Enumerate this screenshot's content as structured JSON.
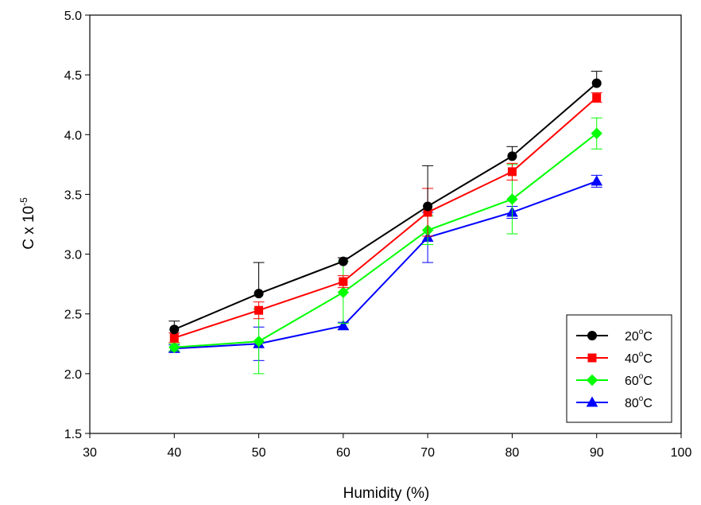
{
  "chart_data": {
    "type": "line",
    "x": [
      40,
      50,
      60,
      70,
      80,
      90
    ],
    "xlabel": "Humidity (%)",
    "ylabel_main": "C x 10",
    "ylabel_sup": "-5",
    "xlim": [
      30,
      100
    ],
    "ylim": [
      1.5,
      5.0
    ],
    "xticks": [
      "30",
      "40",
      "50",
      "60",
      "70",
      "80",
      "90",
      "100"
    ],
    "yticks": [
      "1.5",
      "2.0",
      "2.5",
      "3.0",
      "3.5",
      "4.0",
      "4.5",
      "5.0"
    ],
    "grid": false,
    "legend_position": "bottom-right",
    "series": [
      {
        "name_main": "20",
        "name_sup": "o",
        "name_suffix": "C",
        "color": "#000000",
        "marker": "circle",
        "values": [
          2.37,
          2.67,
          2.94,
          3.4,
          3.82,
          4.43
        ],
        "error_upper": [
          2.44,
          2.93,
          2.97,
          3.74,
          3.9,
          4.53
        ],
        "error_lower": [
          2.3,
          2.41,
          2.91,
          3.06,
          3.74,
          4.33
        ],
        "error_plus_only": true
      },
      {
        "name_main": "40",
        "name_sup": "o",
        "name_suffix": "C",
        "color": "#ff0000",
        "marker": "square",
        "values": [
          2.3,
          2.53,
          2.77,
          3.35,
          3.69,
          4.31
        ],
        "error_upper": [
          2.34,
          2.6,
          2.82,
          3.55,
          3.76,
          4.35
        ],
        "error_lower": [
          2.26,
          2.46,
          2.72,
          3.15,
          3.62,
          4.27
        ]
      },
      {
        "name_main": "60",
        "name_sup": "o",
        "name_suffix": "C",
        "color": "#00ff00",
        "marker": "diamond",
        "values": [
          2.22,
          2.27,
          2.68,
          3.2,
          3.46,
          4.01
        ],
        "error_upper": [
          2.25,
          2.54,
          2.94,
          3.32,
          3.75,
          4.14
        ],
        "error_lower": [
          2.19,
          2.0,
          2.42,
          3.08,
          3.17,
          3.88
        ]
      },
      {
        "name_main": "80",
        "name_sup": "o",
        "name_suffix": "C",
        "color": "#0000ff",
        "marker": "triangle",
        "values": [
          2.21,
          2.25,
          2.4,
          3.14,
          3.35,
          3.61
        ],
        "error_upper": [
          2.24,
          2.39,
          2.43,
          3.35,
          3.4,
          3.66
        ],
        "error_lower": [
          2.18,
          2.11,
          2.37,
          2.93,
          3.3,
          3.56
        ]
      }
    ]
  }
}
